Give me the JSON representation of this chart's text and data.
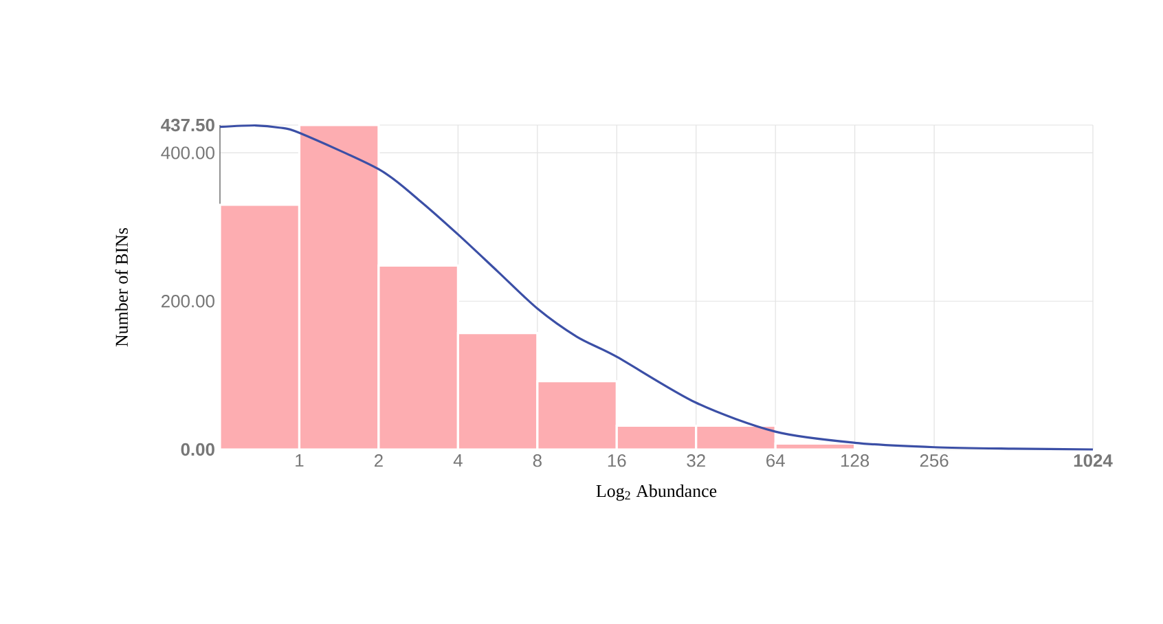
{
  "chart_data": {
    "type": "histogram",
    "xlabel": "Log$_{2}$ Abundance",
    "ylabel": "Number of BINs",
    "bins": [
      0.5,
      1,
      2,
      4,
      8,
      16,
      32,
      64,
      128,
      256
    ],
    "values": [
      330,
      437.5,
      248,
      157,
      92,
      32,
      32,
      8,
      2
    ],
    "color": "#fdadb1",
    "series": [
      {
        "type": "line",
        "color": "#3b4fa6",
        "x": [
          0.5,
          0.683,
          0.84,
          1,
          2,
          2.83,
          4,
          5.66,
          8,
          11.3,
          16,
          32,
          64,
          128,
          256,
          512,
          1024
        ],
        "values": [
          435,
          437,
          434,
          427,
          378,
          337,
          290,
          240,
          190,
          152,
          125,
          63,
          24,
          9,
          3,
          1,
          0
        ]
      }
    ],
    "log": "x",
    "xlim": [
      0.5,
      1024
    ],
    "ylim": [
      0,
      437.5
    ],
    "xticks": [
      1,
      2,
      4,
      8,
      16,
      32,
      64,
      128,
      256,
      1024
    ],
    "yticks": [
      {
        "value": 0,
        "label": "0.00"
      },
      {
        "value": 200,
        "label": "200.00"
      },
      {
        "value": 400,
        "label": "400.00"
      },
      {
        "value": 437.5,
        "label": "437.50"
      }
    ],
    "grid": true
  }
}
